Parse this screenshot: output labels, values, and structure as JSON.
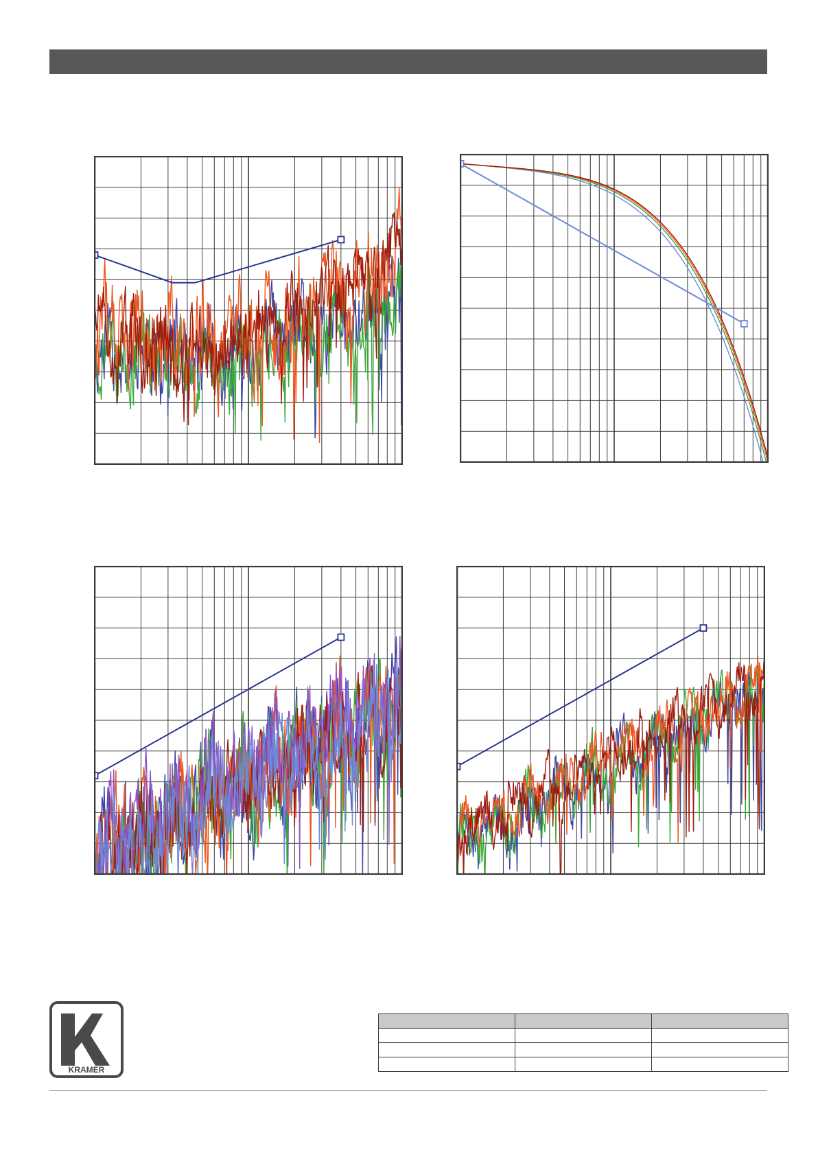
{
  "header": {
    "bar_color": "#58585a"
  },
  "palette": {
    "grid": "#3a3a3a",
    "blue": "#3d46a3",
    "green": "#3aa83a",
    "orange": "#f0561e",
    "darkred": "#9a1e10",
    "purple": "#8e52c8",
    "lightblue": "#6d8ad8",
    "limit": "#2a3590"
  },
  "chart_data": [
    {
      "id": "top-left",
      "type": "line",
      "xscale": "log",
      "xlim": [
        1,
        100
      ],
      "ylim": [
        0,
        10
      ],
      "limit_line": {
        "points": [
          [
            1,
            6.8
          ],
          [
            3.2,
            5.9
          ],
          [
            4.5,
            5.9
          ],
          [
            40,
            7.3
          ]
        ],
        "markers": [
          0,
          3
        ]
      },
      "series": [
        {
          "color": "blue",
          "seed": 11,
          "profile": "bathtub",
          "noise": 1.1
        },
        {
          "color": "green",
          "seed": 23,
          "profile": "bathtub",
          "noise": 1.0
        },
        {
          "color": "orange",
          "seed": 37,
          "profile": "bathtub_hi",
          "noise": 1.3
        },
        {
          "color": "darkred",
          "seed": 51,
          "profile": "bathtub_hi",
          "noise": 1.0
        }
      ]
    },
    {
      "id": "top-right",
      "type": "line",
      "xscale": "log",
      "xlim": [
        1,
        100
      ],
      "ylim": [
        0,
        10
      ],
      "limit_line": {
        "points": [
          [
            1,
            9.7
          ],
          [
            70,
            4.5
          ]
        ],
        "markers": [
          0,
          1
        ]
      },
      "series": [
        {
          "color": "lightblue",
          "profile": "rolloff",
          "offset": -0.25
        },
        {
          "color": "green",
          "profile": "rolloff",
          "offset": -0.05
        },
        {
          "color": "orange",
          "profile": "rolloff",
          "offset": 0.05
        },
        {
          "color": "darkred",
          "profile": "rolloff",
          "offset": 0.12
        }
      ]
    },
    {
      "id": "bottom-left",
      "type": "line",
      "xscale": "log",
      "xlim": [
        1,
        100
      ],
      "ylim": [
        0,
        10
      ],
      "limit_line": {
        "points": [
          [
            1,
            3.2
          ],
          [
            40,
            7.7
          ]
        ],
        "markers": [
          0,
          1
        ]
      },
      "series": [
        {
          "color": "blue",
          "seed": 5,
          "profile": "rising",
          "noise": 1.6
        },
        {
          "color": "green",
          "seed": 17,
          "profile": "rising",
          "noise": 1.6
        },
        {
          "color": "orange",
          "seed": 29,
          "profile": "rising",
          "noise": 1.5
        },
        {
          "color": "darkred",
          "seed": 43,
          "profile": "rising",
          "noise": 1.3
        },
        {
          "color": "purple",
          "seed": 61,
          "profile": "rising_hi",
          "noise": 1.4
        },
        {
          "color": "lightblue",
          "seed": 73,
          "profile": "rising",
          "noise": 1.4
        }
      ]
    },
    {
      "id": "bottom-right",
      "type": "line",
      "xscale": "log",
      "xlim": [
        1,
        100
      ],
      "ylim": [
        0,
        10
      ],
      "limit_line": {
        "points": [
          [
            1,
            3.5
          ],
          [
            40,
            8.0
          ]
        ],
        "markers": [
          0,
          1
        ]
      },
      "series": [
        {
          "color": "blue",
          "seed": 7,
          "profile": "rising_smooth",
          "noise": 0.7
        },
        {
          "color": "green",
          "seed": 19,
          "profile": "rising_smooth",
          "noise": 0.7
        },
        {
          "color": "orange",
          "seed": 31,
          "profile": "rising_smooth_hi",
          "noise": 0.6
        },
        {
          "color": "darkred",
          "seed": 47,
          "profile": "rising_smooth_hi",
          "noise": 0.6
        }
      ]
    }
  ],
  "logo": {
    "text": "KRAMER"
  },
  "info_table": {
    "header": [
      "",
      "",
      ""
    ],
    "rows": [
      [
        "",
        "",
        ""
      ],
      [
        "",
        "",
        ""
      ],
      [
        "",
        "",
        ""
      ]
    ]
  }
}
